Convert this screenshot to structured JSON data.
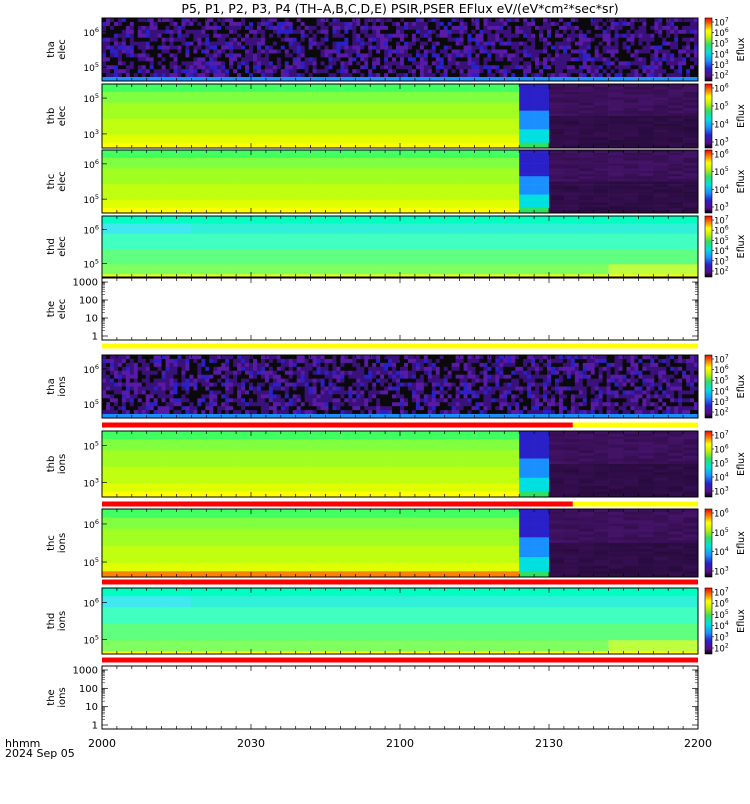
{
  "title": "P5, P1, P2, P3, P4 (TH–A,B,C,D,E) PSIR,PSER EFlux eV/(eV*cm²*sec*sr)",
  "footer": {
    "time_format": "hhmm",
    "date": "2024 Sep 05"
  },
  "chart_data": {
    "type": "heatmap",
    "x_axis": {
      "ticks": [
        "2000",
        "2030",
        "2100",
        "2130",
        "2200"
      ],
      "range": [
        "20:00",
        "22:00"
      ]
    },
    "colorbar_label": "Eflux",
    "panels": [
      {
        "label1": "tha",
        "label2": "elec",
        "kind": "spectrogram",
        "style": "noisy",
        "yticks": [
          {
            "b": "10",
            "e": "6"
          },
          {
            "b": "10",
            "e": "5"
          }
        ],
        "cbar_ticks": [
          {
            "b": "10",
            "e": "7"
          },
          {
            "b": "10",
            "e": "6"
          },
          {
            "b": "10",
            "e": "5"
          },
          {
            "b": "10",
            "e": "4"
          },
          {
            "b": "10",
            "e": "3"
          },
          {
            "b": "10",
            "e": "2"
          }
        ],
        "status_bar": null
      },
      {
        "label1": "thb",
        "label2": "elec",
        "kind": "spectrogram",
        "style": "green_split",
        "yticks": [
          {
            "b": "10",
            "e": "5"
          },
          {
            "b": "10",
            "e": "3"
          }
        ],
        "cbar_ticks": [
          {
            "b": "10",
            "e": "6"
          },
          {
            "b": "10",
            "e": "5"
          },
          {
            "b": "10",
            "e": "4"
          },
          {
            "b": "10",
            "e": "3"
          }
        ],
        "status_bar": null
      },
      {
        "label1": "thc",
        "label2": "elec",
        "kind": "spectrogram",
        "style": "green_split",
        "yticks": [
          {
            "b": "10",
            "e": "6"
          },
          {
            "b": "10",
            "e": "5"
          }
        ],
        "cbar_ticks": [
          {
            "b": "10",
            "e": "6"
          },
          {
            "b": "10",
            "e": "5"
          },
          {
            "b": "10",
            "e": "4"
          },
          {
            "b": "10",
            "e": "3"
          }
        ],
        "status_bar": null
      },
      {
        "label1": "thd",
        "label2": "elec",
        "kind": "spectrogram",
        "style": "cyan",
        "yticks": [
          {
            "b": "10",
            "e": "6"
          },
          {
            "b": "10",
            "e": "5"
          }
        ],
        "cbar_ticks": [
          {
            "b": "10",
            "e": "7"
          },
          {
            "b": "10",
            "e": "6"
          },
          {
            "b": "10",
            "e": "5"
          },
          {
            "b": "10",
            "e": "4"
          },
          {
            "b": "10",
            "e": "3"
          },
          {
            "b": "10",
            "e": "2"
          }
        ],
        "status_bar": null
      },
      {
        "label1": "the",
        "label2": "elec",
        "kind": "empty",
        "yticks_plain": [
          "1000",
          "100",
          "10",
          "1"
        ],
        "status_bar": {
          "segments": [
            {
              "to": 1.0,
              "color": "#ffff00"
            }
          ]
        }
      },
      {
        "label1": "tha",
        "label2": "ions",
        "kind": "spectrogram",
        "style": "noisy",
        "yticks": [
          {
            "b": "10",
            "e": "6"
          },
          {
            "b": "10",
            "e": "5"
          }
        ],
        "cbar_ticks": [
          {
            "b": "10",
            "e": "7"
          },
          {
            "b": "10",
            "e": "6"
          },
          {
            "b": "10",
            "e": "5"
          },
          {
            "b": "10",
            "e": "4"
          },
          {
            "b": "10",
            "e": "3"
          },
          {
            "b": "10",
            "e": "2"
          }
        ],
        "status_bar": {
          "segments": [
            {
              "to": 0.79,
              "color": "#ff0000"
            },
            {
              "to": 1.0,
              "color": "#ffff00"
            }
          ]
        }
      },
      {
        "label1": "thb",
        "label2": "ions",
        "kind": "spectrogram",
        "style": "green_split2",
        "yticks": [
          {
            "b": "10",
            "e": "5"
          },
          {
            "b": "10",
            "e": "3"
          }
        ],
        "cbar_ticks": [
          {
            "b": "10",
            "e": "7"
          },
          {
            "b": "10",
            "e": "6"
          },
          {
            "b": "10",
            "e": "5"
          },
          {
            "b": "10",
            "e": "4"
          },
          {
            "b": "10",
            "e": "3"
          }
        ],
        "status_bar": {
          "segments": [
            {
              "to": 0.79,
              "color": "#ff0000"
            },
            {
              "to": 1.0,
              "color": "#ffff00"
            }
          ]
        }
      },
      {
        "label1": "thc",
        "label2": "ions",
        "kind": "spectrogram",
        "style": "green_split_orange",
        "yticks": [
          {
            "b": "10",
            "e": "6"
          },
          {
            "b": "10",
            "e": "5"
          }
        ],
        "cbar_ticks": [
          {
            "b": "10",
            "e": "6"
          },
          {
            "b": "10",
            "e": "5"
          },
          {
            "b": "10",
            "e": "4"
          },
          {
            "b": "10",
            "e": "3"
          }
        ],
        "status_bar": {
          "segments": [
            {
              "to": 1.0,
              "color": "#ff0000"
            }
          ]
        }
      },
      {
        "label1": "thd",
        "label2": "ions",
        "kind": "spectrogram",
        "style": "cyan",
        "yticks": [
          {
            "b": "10",
            "e": "6"
          },
          {
            "b": "10",
            "e": "5"
          }
        ],
        "cbar_ticks": [
          {
            "b": "10",
            "e": "7"
          },
          {
            "b": "10",
            "e": "6"
          },
          {
            "b": "10",
            "e": "5"
          },
          {
            "b": "10",
            "e": "4"
          },
          {
            "b": "10",
            "e": "3"
          },
          {
            "b": "10",
            "e": "2"
          }
        ],
        "status_bar": {
          "segments": [
            {
              "to": 1.0,
              "color": "#ff0000"
            }
          ]
        }
      },
      {
        "label1": "the",
        "label2": "ions",
        "kind": "empty",
        "yticks_plain": [
          "1000",
          "100",
          "10",
          "1"
        ],
        "status_bar": null
      }
    ]
  }
}
